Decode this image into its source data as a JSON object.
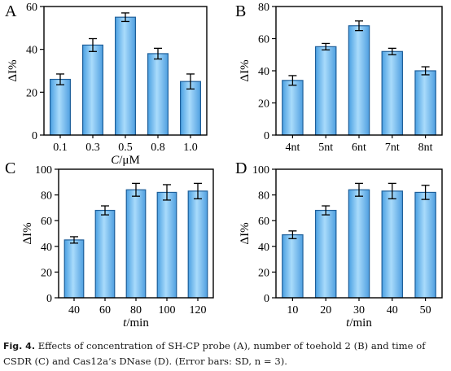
{
  "caption": {
    "label": "Fig. 4.",
    "text": "Effects of concentration of SH-CP probe (A), number of toehold 2 (B) and time of CSDR (C) and Cas12a’s DNase (D). (Error bars: SD, n = 3)."
  },
  "colors": {
    "bar_top": "#dff2ff",
    "bar_mid": "#7fc6f4",
    "bar_bottom": "#3f97de",
    "bar_stroke": "#1e5f9a",
    "axis": "#000000"
  },
  "chart_data": [
    {
      "panel": "A",
      "type": "bar",
      "categories": [
        "0.1",
        "0.3",
        "0.5",
        "0.8",
        "1.0"
      ],
      "values": [
        26,
        42,
        55,
        38,
        25
      ],
      "errors": [
        2.5,
        3,
        2,
        2.5,
        3.5
      ],
      "ylabel": "ΔI%",
      "xlabel": "C/μM",
      "ylim": [
        0,
        60
      ],
      "yticks": [
        0,
        20,
        40,
        60
      ]
    },
    {
      "panel": "B",
      "type": "bar",
      "categories": [
        "4nt",
        "5nt",
        "6nt",
        "7nt",
        "8nt"
      ],
      "values": [
        34,
        55,
        68,
        52,
        40
      ],
      "errors": [
        3,
        2,
        3,
        2,
        2.5
      ],
      "ylabel": "ΔI%",
      "xlabel": "",
      "ylim": [
        0,
        80
      ],
      "yticks": [
        0,
        20,
        40,
        60,
        80
      ]
    },
    {
      "panel": "C",
      "type": "bar",
      "categories": [
        "40",
        "60",
        "80",
        "100",
        "120"
      ],
      "values": [
        45,
        68,
        84,
        82,
        83
      ],
      "errors": [
        2.5,
        3.5,
        5,
        6,
        6
      ],
      "ylabel": "ΔI%",
      "xlabel": "t/min",
      "ylim": [
        0,
        100
      ],
      "yticks": [
        0,
        20,
        40,
        60,
        80,
        100
      ]
    },
    {
      "panel": "D",
      "type": "bar",
      "categories": [
        "10",
        "20",
        "30",
        "40",
        "50"
      ],
      "values": [
        49,
        68,
        84,
        83,
        82
      ],
      "errors": [
        3,
        3.5,
        5,
        6,
        5.5
      ],
      "ylabel": "ΔI%",
      "xlabel": "t/min",
      "ylim": [
        0,
        100
      ],
      "yticks": [
        0,
        20,
        40,
        60,
        80,
        100
      ]
    }
  ]
}
